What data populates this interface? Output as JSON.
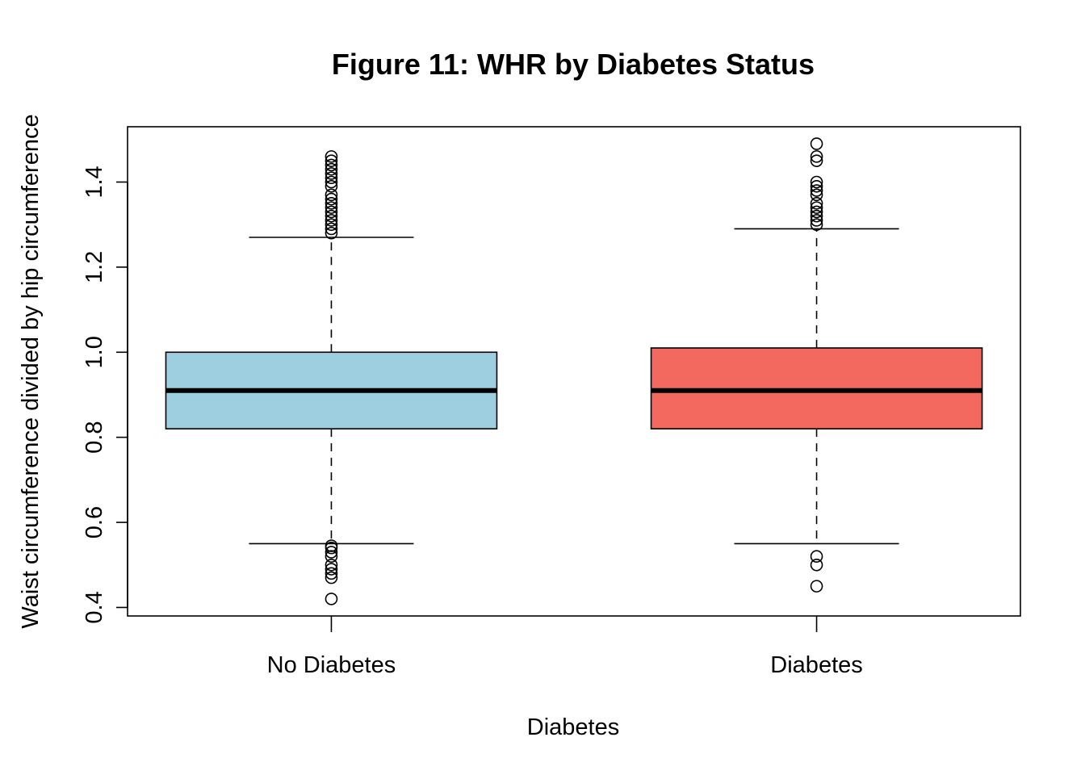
{
  "chart_data": {
    "type": "box",
    "title": "Figure 11: WHR by Diabetes Status",
    "xlabel": "Diabetes",
    "ylabel": "Waist circumference divided by hip circumference",
    "categories": [
      "No Diabetes",
      "Diabetes"
    ],
    "ylim": [
      0.38,
      1.53
    ],
    "y_ticks": [
      0.4,
      0.6,
      0.8,
      1.0,
      1.2,
      1.4
    ],
    "y_tick_labels": [
      "0.4",
      "0.6",
      "0.8",
      "1.0",
      "1.2",
      "1.4"
    ],
    "grid": false,
    "legend": "none",
    "series": [
      {
        "category": "No Diabetes",
        "color": "#9ECFE0",
        "whisker_low": 0.55,
        "q1": 0.82,
        "median": 0.91,
        "q3": 1.0,
        "whisker_high": 1.27,
        "outliers": [
          0.42,
          0.47,
          0.48,
          0.49,
          0.5,
          0.52,
          0.53,
          0.54,
          0.545,
          1.28,
          1.29,
          1.3,
          1.31,
          1.32,
          1.33,
          1.34,
          1.35,
          1.36,
          1.37,
          1.39,
          1.4,
          1.41,
          1.42,
          1.43,
          1.44,
          1.45,
          1.46
        ]
      },
      {
        "category": "Diabetes",
        "color": "#F4695F",
        "whisker_low": 0.55,
        "q1": 0.82,
        "median": 0.91,
        "q3": 1.01,
        "whisker_high": 1.29,
        "outliers": [
          0.45,
          0.5,
          0.52,
          1.3,
          1.31,
          1.32,
          1.33,
          1.34,
          1.35,
          1.37,
          1.38,
          1.39,
          1.4,
          1.45,
          1.46,
          1.49
        ]
      }
    ]
  }
}
